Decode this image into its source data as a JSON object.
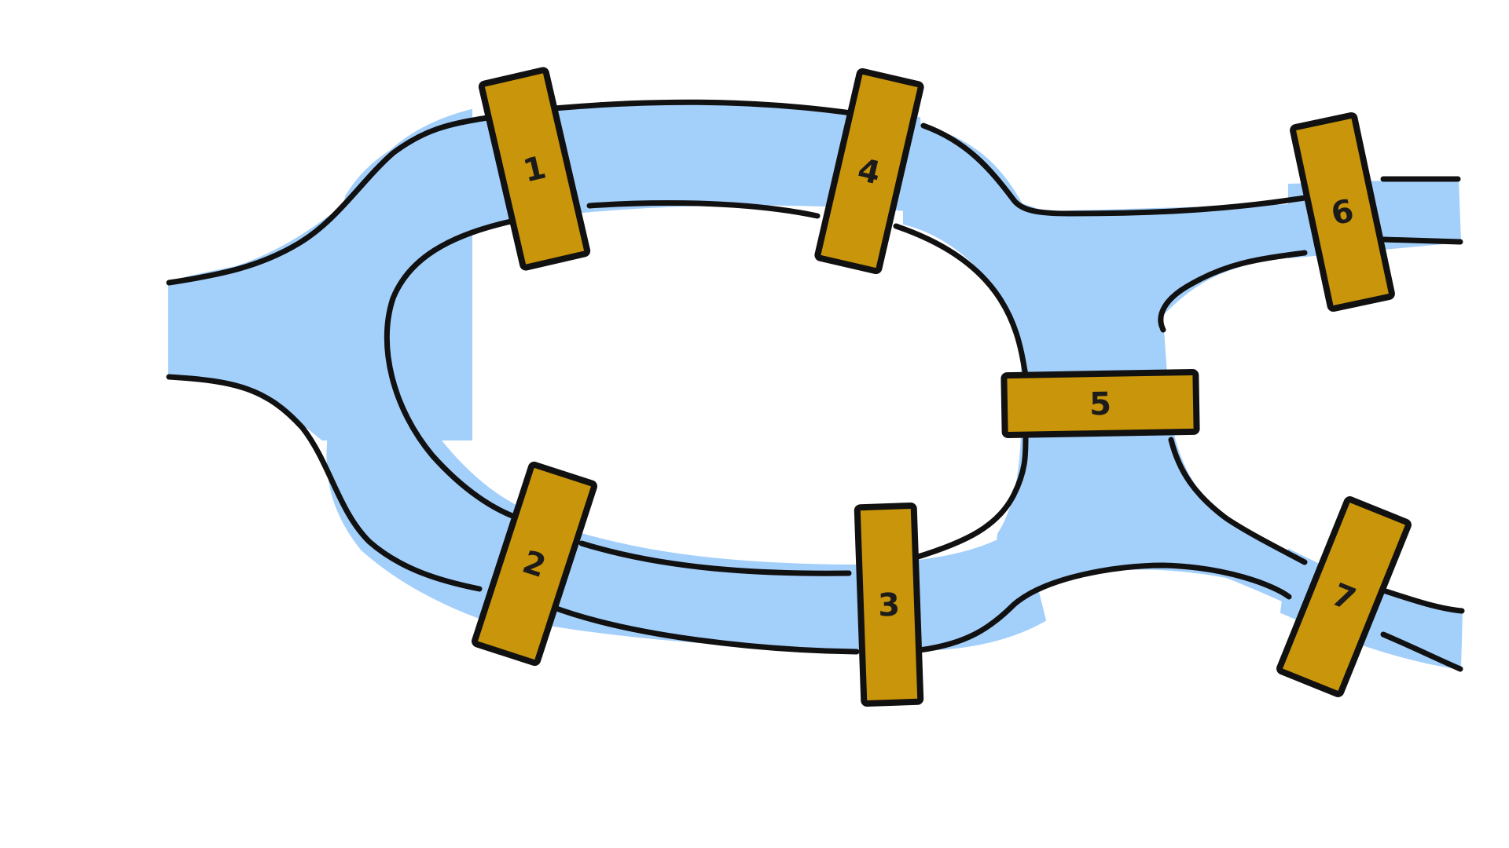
{
  "colors": {
    "river": "#a3cffb",
    "bridge": "#c9950a",
    "outline": "#111111",
    "land": "#ffffff"
  },
  "bridges": [
    {
      "id": "bridge-1",
      "label": "1"
    },
    {
      "id": "bridge-2",
      "label": "2"
    },
    {
      "id": "bridge-3",
      "label": "3"
    },
    {
      "id": "bridge-4",
      "label": "4"
    },
    {
      "id": "bridge-5",
      "label": "5"
    },
    {
      "id": "bridge-6",
      "label": "6"
    },
    {
      "id": "bridge-7",
      "label": "7"
    }
  ]
}
